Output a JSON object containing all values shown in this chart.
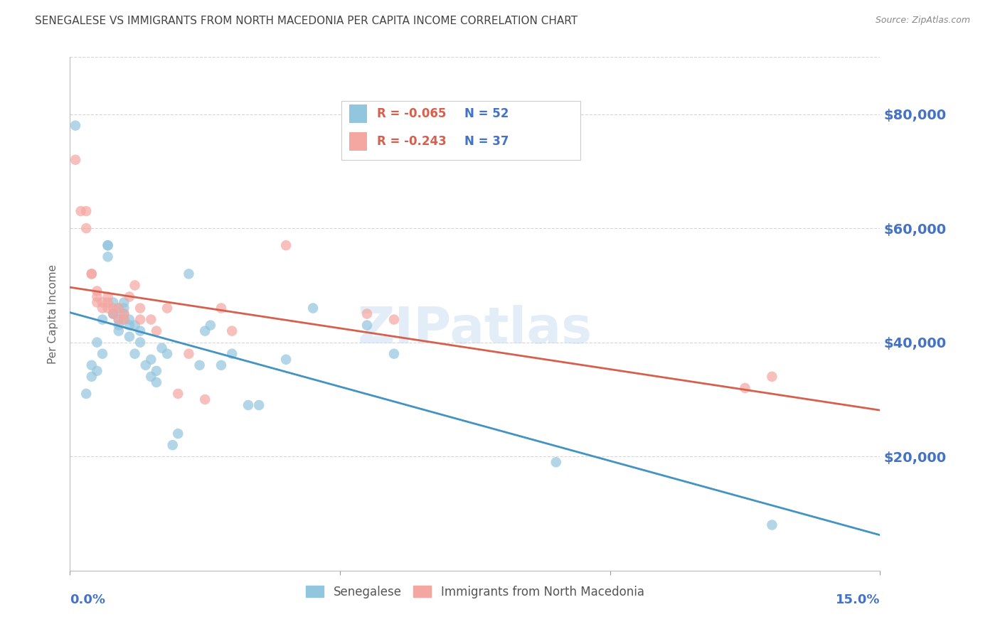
{
  "title": "SENEGALESE VS IMMIGRANTS FROM NORTH MACEDONIA PER CAPITA INCOME CORRELATION CHART",
  "source": "Source: ZipAtlas.com",
  "ylabel": "Per Capita Income",
  "ytick_labels": [
    "$20,000",
    "$40,000",
    "$60,000",
    "$80,000"
  ],
  "ytick_values": [
    20000,
    40000,
    60000,
    80000
  ],
  "xlim": [
    0.0,
    0.15
  ],
  "ylim": [
    0,
    90000
  ],
  "watermark": "ZIPatlas",
  "legend_r1": "-0.065",
  "legend_n1": "52",
  "legend_r2": "-0.243",
  "legend_n2": "37",
  "series1_color": "#92c5de",
  "series2_color": "#f4a6a0",
  "trend1_color": "#4393c3",
  "trend2_color": "#d6604d",
  "bg_color": "#ffffff",
  "grid_color": "#cccccc",
  "title_color": "#444444",
  "source_color": "#888888",
  "ytick_color": "#4472c4",
  "xlabel_color": "#4472c4",
  "watermark_color": "#c8ddf0",
  "senegalese_x": [
    0.001,
    0.003,
    0.004,
    0.004,
    0.005,
    0.005,
    0.006,
    0.006,
    0.007,
    0.007,
    0.007,
    0.008,
    0.008,
    0.008,
    0.009,
    0.009,
    0.009,
    0.009,
    0.01,
    0.01,
    0.01,
    0.01,
    0.011,
    0.011,
    0.011,
    0.012,
    0.012,
    0.013,
    0.013,
    0.014,
    0.015,
    0.015,
    0.016,
    0.016,
    0.017,
    0.018,
    0.019,
    0.02,
    0.022,
    0.024,
    0.025,
    0.026,
    0.028,
    0.03,
    0.033,
    0.035,
    0.04,
    0.045,
    0.055,
    0.06,
    0.09,
    0.13
  ],
  "senegalese_y": [
    78000,
    31000,
    36000,
    34000,
    40000,
    35000,
    38000,
    44000,
    57000,
    57000,
    55000,
    47000,
    45000,
    45000,
    46000,
    44000,
    43000,
    42000,
    47000,
    46000,
    45000,
    44000,
    44000,
    43000,
    41000,
    43000,
    38000,
    42000,
    40000,
    36000,
    37000,
    34000,
    35000,
    33000,
    39000,
    38000,
    22000,
    24000,
    52000,
    36000,
    42000,
    43000,
    36000,
    38000,
    29000,
    29000,
    37000,
    46000,
    43000,
    38000,
    19000,
    8000
  ],
  "macedonia_x": [
    0.001,
    0.002,
    0.003,
    0.003,
    0.004,
    0.004,
    0.005,
    0.005,
    0.005,
    0.006,
    0.006,
    0.007,
    0.007,
    0.007,
    0.008,
    0.008,
    0.009,
    0.009,
    0.01,
    0.01,
    0.011,
    0.012,
    0.013,
    0.013,
    0.015,
    0.016,
    0.018,
    0.02,
    0.022,
    0.025,
    0.028,
    0.03,
    0.04,
    0.055,
    0.06,
    0.125,
    0.13
  ],
  "macedonia_y": [
    72000,
    63000,
    63000,
    60000,
    52000,
    52000,
    49000,
    48000,
    47000,
    47000,
    46000,
    48000,
    47000,
    46000,
    46000,
    45000,
    46000,
    44000,
    44000,
    45000,
    48000,
    50000,
    46000,
    44000,
    44000,
    42000,
    46000,
    31000,
    38000,
    30000,
    46000,
    42000,
    57000,
    45000,
    44000,
    32000,
    34000
  ]
}
